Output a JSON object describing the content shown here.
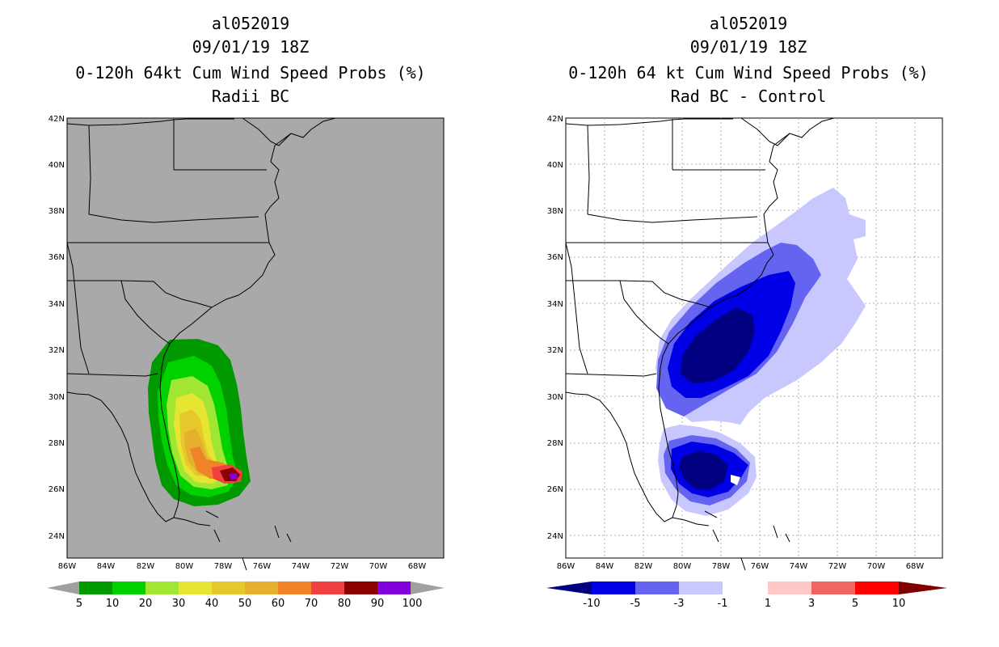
{
  "left": {
    "title_lines": [
      "al052019",
      "09/01/19 18Z",
      "0-120h 64kt Cum Wind Speed Probs (%)",
      "Radii BC"
    ],
    "colorbar": {
      "labels": [
        "5",
        "10",
        "20",
        "30",
        "40",
        "50",
        "60",
        "70",
        "80",
        "90",
        "100"
      ],
      "colors": [
        "#009a00",
        "#00d200",
        "#a0e632",
        "#e6e632",
        "#e6c82d",
        "#e6af2d",
        "#f08228",
        "#f04040",
        "#8c0000",
        "#8200dc"
      ],
      "end_color": "#a0a0a0"
    },
    "background_color": "#a9a9a9"
  },
  "right": {
    "title_lines": [
      "al052019",
      "09/01/19 18Z",
      "0-120h 64 kt Cum Wind Speed Probs (%)",
      "Rad BC - Control"
    ],
    "colorbar": {
      "labels": [
        "-10",
        "-5",
        "-3",
        "-1",
        "1",
        "3",
        "5",
        "10"
      ],
      "colors": [
        "#0000e6",
        "#6464f0",
        "#c8c8ff",
        "#ffffff",
        "#ffc8c8",
        "#f06464",
        "#ff0000"
      ],
      "neg_end": "#000080",
      "pos_end": "#800000"
    },
    "background_color": "#ffffff"
  },
  "axes": {
    "lon_labels": [
      "86W",
      "84W",
      "82W",
      "80W",
      "78W",
      "76W",
      "74W",
      "72W",
      "70W",
      "68W"
    ],
    "lat_labels": [
      "24N",
      "26N",
      "28N",
      "30N",
      "32N",
      "34N",
      "36N",
      "38N",
      "40N",
      "42N"
    ]
  }
}
